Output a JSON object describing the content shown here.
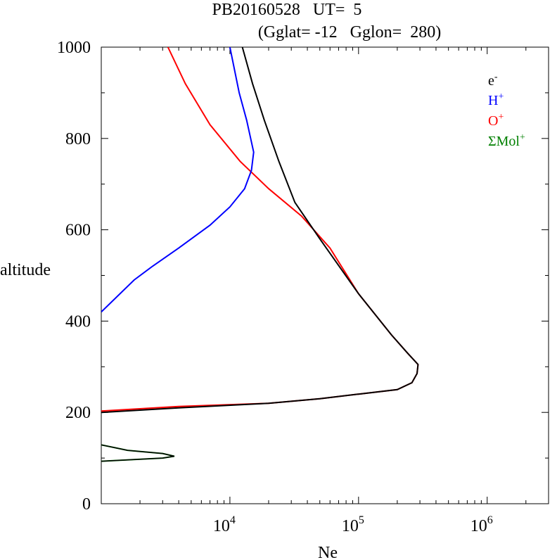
{
  "chart_data": {
    "type": "line",
    "title_line1": "PB20160528   UT=  5",
    "title_line2": "(Gglat= -12   Gglon=  280)",
    "xlabel": "Ne",
    "ylabel": "altitude",
    "xscale": "log",
    "xlim": [
      1000,
      3000000
    ],
    "ylim": [
      0,
      1000
    ],
    "y_ticks": [
      "0",
      "200",
      "400",
      "600",
      "800",
      "1000"
    ],
    "x_ticks": [
      {
        "base": "10",
        "exp": "4",
        "value": 10000
      },
      {
        "base": "10",
        "exp": "5",
        "value": 100000
      },
      {
        "base": "10",
        "exp": "6",
        "value": 1000000
      }
    ],
    "legend_position": "top-right",
    "series": [
      {
        "name": "e",
        "name_sup": "-",
        "color": "#000000",
        "points": [
          [
            12500,
            1000
          ],
          [
            15000,
            920
          ],
          [
            18500,
            840
          ],
          [
            24000,
            750
          ],
          [
            32000,
            660
          ],
          [
            50000,
            580
          ],
          [
            100000,
            460
          ],
          [
            180000,
            370
          ],
          [
            240000,
            330
          ],
          [
            290000,
            305
          ],
          [
            285000,
            285
          ],
          [
            260000,
            265
          ],
          [
            200000,
            250
          ],
          [
            100000,
            240
          ],
          [
            50000,
            230
          ],
          [
            20000,
            220
          ],
          [
            4000,
            210
          ],
          [
            1000,
            200
          ]
        ]
      },
      {
        "name": "H",
        "name_sup": "+",
        "color": "#0000ff",
        "points": [
          [
            10000,
            1000
          ],
          [
            11800,
            900
          ],
          [
            13500,
            840
          ],
          [
            15300,
            770
          ],
          [
            14700,
            730
          ],
          [
            13000,
            690
          ],
          [
            10000,
            650
          ],
          [
            7000,
            610
          ],
          [
            4000,
            560
          ],
          [
            2500,
            520
          ],
          [
            1800,
            490
          ],
          [
            1000,
            420
          ]
        ]
      },
      {
        "name": "O",
        "name_sup": "+",
        "color": "#ff0000",
        "points": [
          [
            3300,
            1000
          ],
          [
            4500,
            920
          ],
          [
            7000,
            830
          ],
          [
            12000,
            750
          ],
          [
            20000,
            690
          ],
          [
            36000,
            630
          ],
          [
            60000,
            560
          ],
          [
            100000,
            460
          ],
          [
            180000,
            370
          ],
          [
            240000,
            330
          ],
          [
            290000,
            305
          ],
          [
            285000,
            285
          ],
          [
            260000,
            265
          ],
          [
            200000,
            250
          ],
          [
            100000,
            240
          ],
          [
            50000,
            230
          ],
          [
            20000,
            220
          ],
          [
            4000,
            213
          ],
          [
            1000,
            203
          ]
        ]
      },
      {
        "name": "ΣMol",
        "name_sup": "+",
        "color": "#008000",
        "points": [
          [
            1000,
            129
          ],
          [
            1600,
            117
          ],
          [
            3000,
            110
          ],
          [
            3700,
            104
          ],
          [
            3000,
            100
          ],
          [
            1000,
            93
          ]
        ]
      }
    ],
    "electron_lower_region": [
      [
        1000,
        129
      ],
      [
        1600,
        117
      ],
      [
        3000,
        110
      ],
      [
        3700,
        104
      ],
      [
        3000,
        100
      ],
      [
        1000,
        93
      ]
    ]
  }
}
